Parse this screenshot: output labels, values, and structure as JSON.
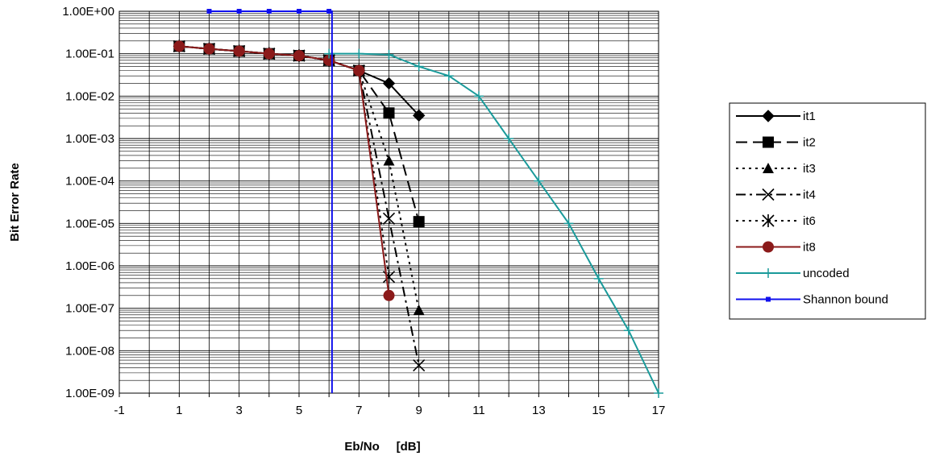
{
  "chart_data": {
    "type": "line",
    "xlabel": "Eb/No     [dB]",
    "ylabel": "Bit Error Rate",
    "y_scale": "log",
    "xlim": [
      -1,
      17
    ],
    "ylim": [
      1e-09,
      1
    ],
    "x_ticks": [
      "-1",
      "1",
      "3",
      "5",
      "7",
      "9",
      "11",
      "13",
      "15",
      "17"
    ],
    "y_ticks": [
      "1.00E+00",
      "1.00E-01",
      "1.00E-02",
      "1.00E-03",
      "1.00E-04",
      "1.00E-05",
      "1.00E-06",
      "1.00E-07",
      "1.00E-08",
      "1.00E-09"
    ],
    "grid": true,
    "legend_position": "right",
    "series": [
      {
        "name": "it1",
        "color": "#000000",
        "dash": "solid",
        "marker": "diamond",
        "x": [
          1,
          2,
          3,
          4,
          5,
          6,
          7,
          8,
          9
        ],
        "y": [
          0.15,
          0.13,
          0.115,
          0.1,
          0.09,
          0.07,
          0.04,
          0.02,
          0.0035
        ]
      },
      {
        "name": "it2",
        "color": "#000000",
        "dash": "longdash",
        "marker": "square",
        "x": [
          1,
          2,
          3,
          4,
          5,
          6,
          7,
          8,
          9
        ],
        "y": [
          0.15,
          0.13,
          0.115,
          0.1,
          0.09,
          0.07,
          0.04,
          0.004,
          1.1e-05
        ]
      },
      {
        "name": "it3",
        "color": "#000000",
        "dash": "dot",
        "marker": "triangle",
        "x": [
          1,
          2,
          3,
          4,
          5,
          6,
          7,
          8,
          9
        ],
        "y": [
          0.15,
          0.13,
          0.115,
          0.1,
          0.09,
          0.07,
          0.04,
          0.0003,
          9e-08
        ]
      },
      {
        "name": "it4",
        "color": "#000000",
        "dash": "dashdot",
        "marker": "x",
        "x": [
          1,
          2,
          3,
          4,
          5,
          6,
          7,
          8,
          9
        ],
        "y": [
          0.15,
          0.13,
          0.115,
          0.1,
          0.09,
          0.07,
          0.04,
          1.3e-05,
          4.5e-09
        ]
      },
      {
        "name": "it6",
        "color": "#000000",
        "dash": "dot",
        "marker": "star",
        "x": [
          1,
          2,
          3,
          4,
          5,
          6,
          7,
          8
        ],
        "y": [
          0.15,
          0.13,
          0.115,
          0.1,
          0.09,
          0.07,
          0.04,
          5.5e-07
        ]
      },
      {
        "name": "it8",
        "color": "#8b1a1a",
        "dash": "solid",
        "marker": "circle",
        "x": [
          1,
          2,
          3,
          4,
          5,
          6,
          7,
          8
        ],
        "y": [
          0.15,
          0.13,
          0.115,
          0.1,
          0.09,
          0.07,
          0.04,
          2e-07
        ]
      },
      {
        "name": "uncoded",
        "color": "#1a9a9a",
        "dash": "solid",
        "marker": "plus",
        "x": [
          6,
          7,
          8,
          9,
          10,
          11,
          12,
          13,
          14,
          15,
          16,
          17
        ],
        "y": [
          0.1,
          0.1,
          0.095,
          0.05,
          0.03,
          0.01,
          0.001,
          0.0001,
          1e-05,
          5e-07,
          3e-08,
          1e-09
        ]
      },
      {
        "name": "Shannon bound",
        "color": "#1010ee",
        "dash": "solid",
        "marker": "smallsquare",
        "x": [
          2,
          3,
          4,
          5,
          6,
          6.1,
          6.1
        ],
        "y": [
          1,
          1,
          1,
          1,
          1,
          1,
          1e-09
        ]
      }
    ]
  }
}
